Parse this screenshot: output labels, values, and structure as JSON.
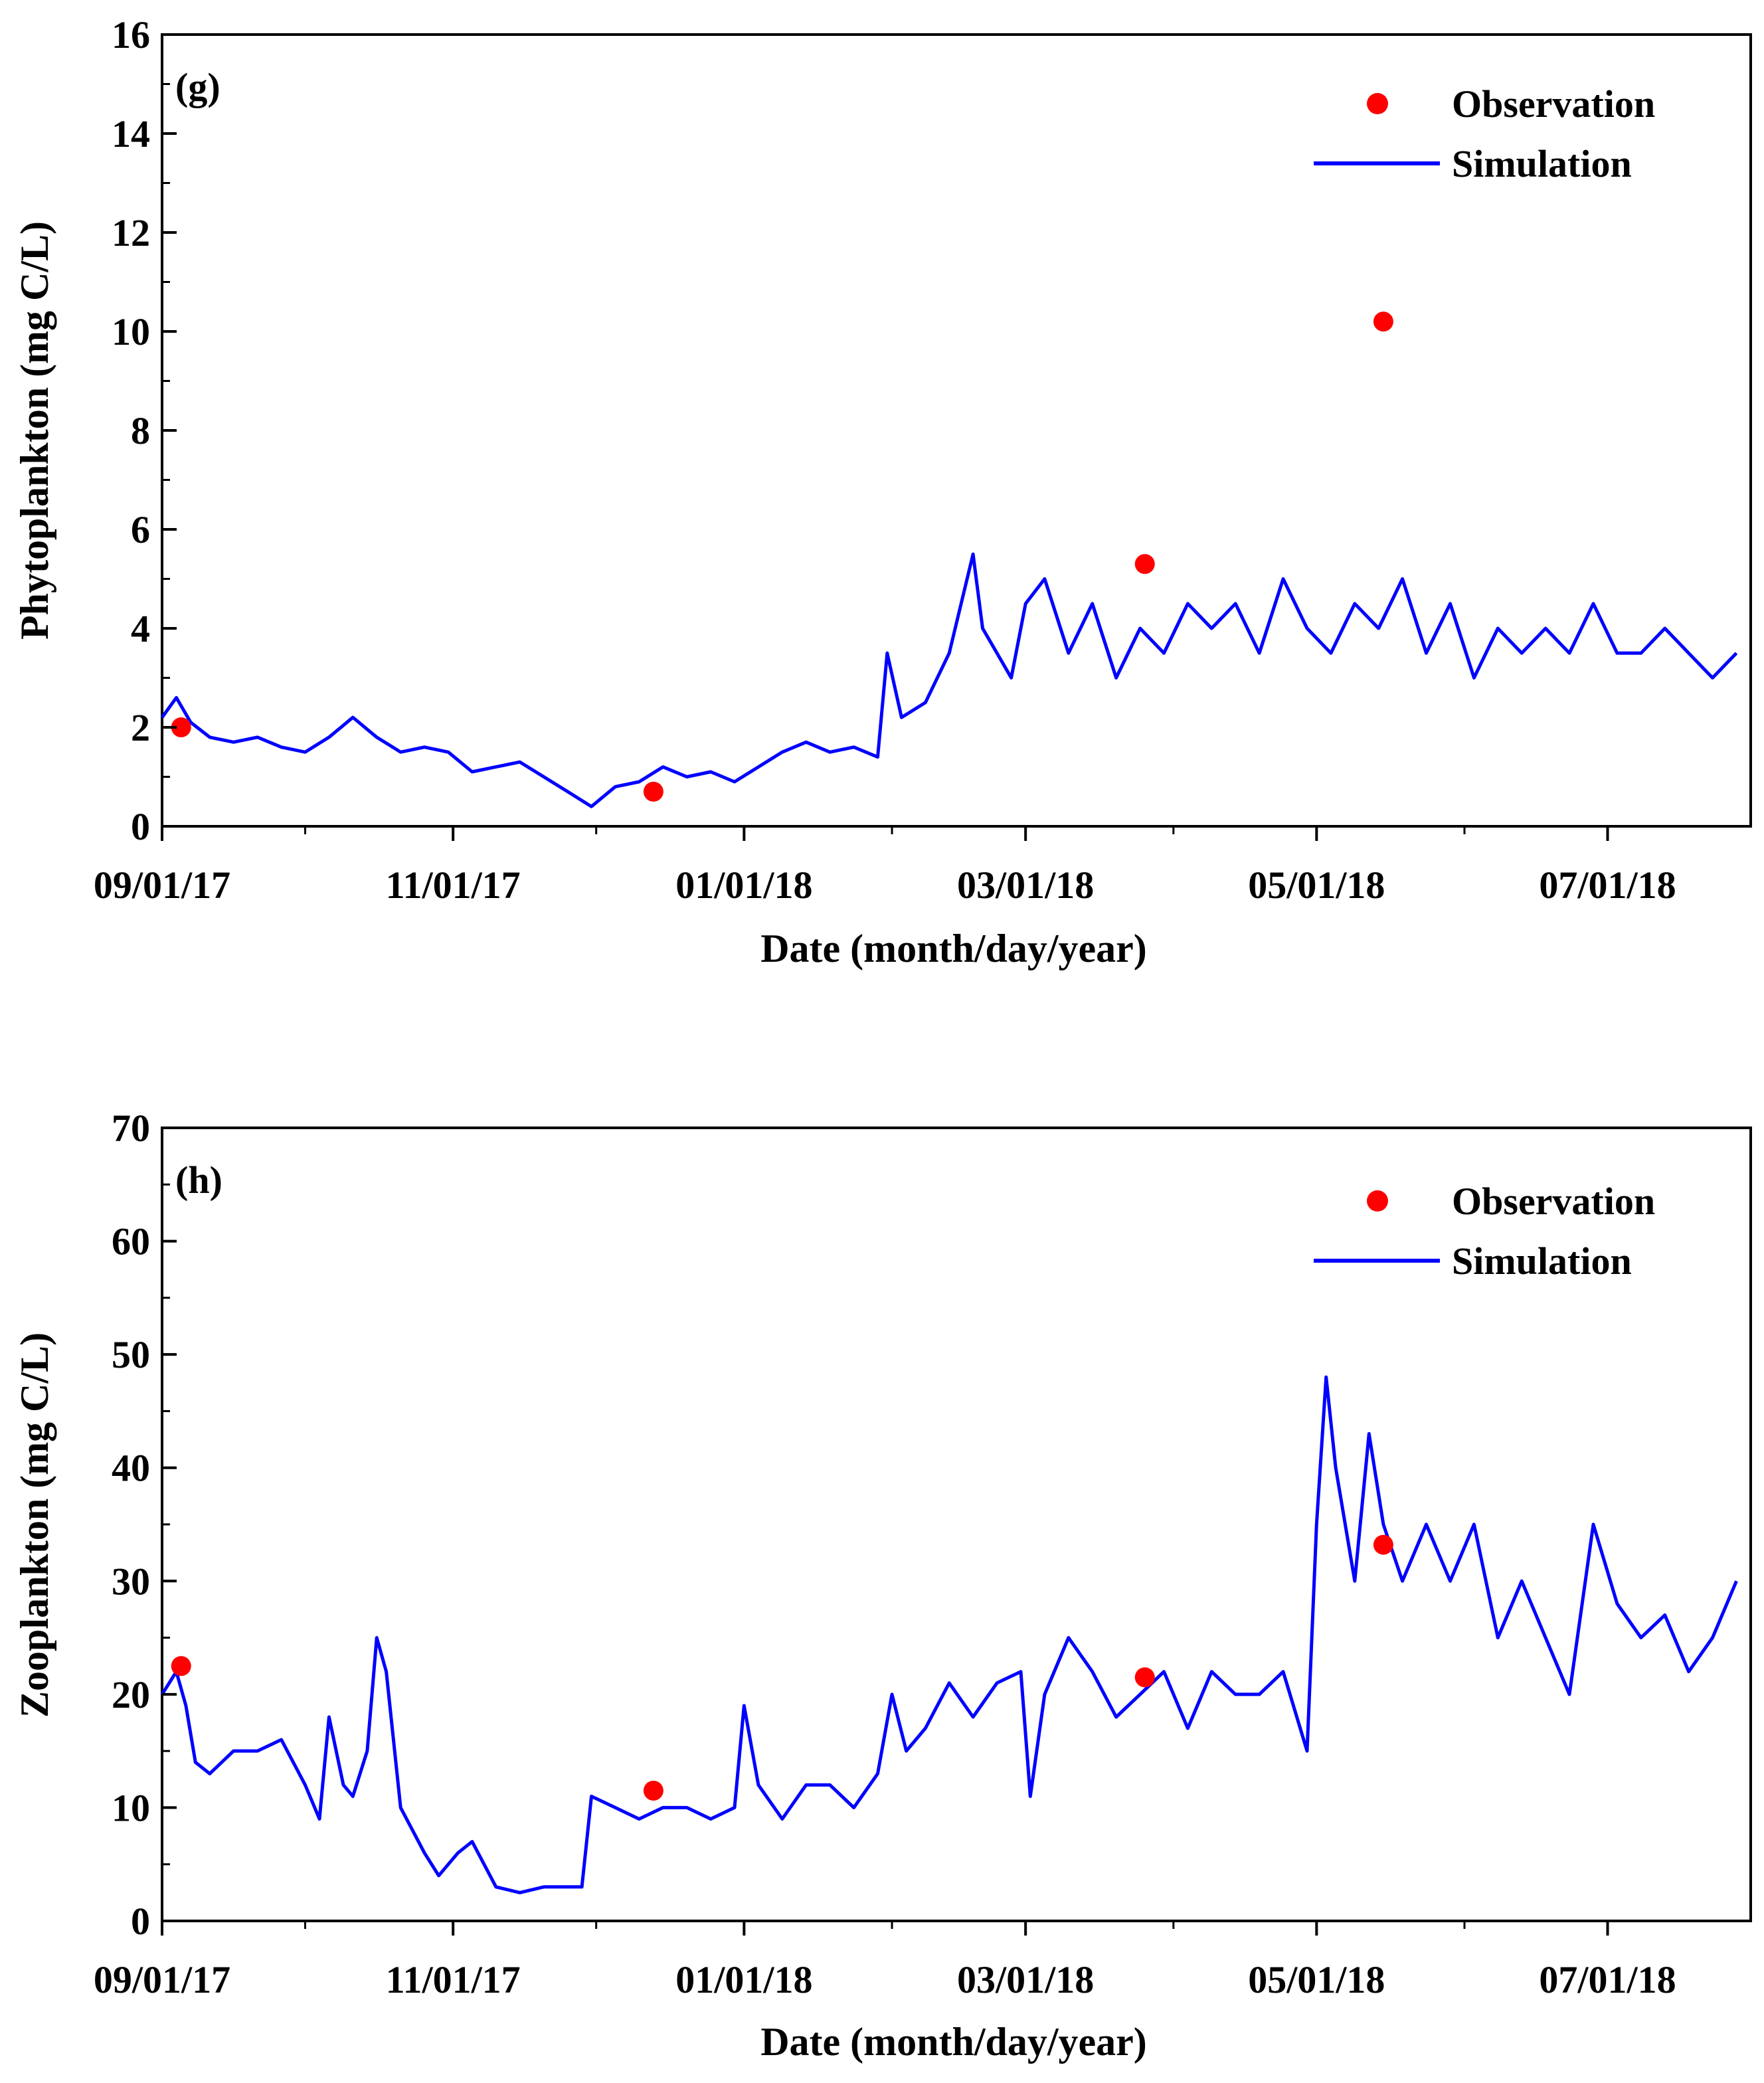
{
  "x_axis_label": "Date (month/day/year)",
  "legend": {
    "observation": "Observation",
    "simulation": "Simulation"
  },
  "colors": {
    "observation": "#ff0000",
    "simulation": "#0000ff",
    "axis": "#000000"
  },
  "chart_data": [
    {
      "id": "g",
      "panel_label": "(g)",
      "type": "line",
      "title": "",
      "xlabel": "Date (month/day/year)",
      "ylabel": "Phytoplankton (mg C/L)",
      "ylim": [
        0,
        16
      ],
      "yticks": [
        0,
        2,
        4,
        6,
        8,
        10,
        12,
        14,
        16
      ],
      "y_minor_step": 1,
      "xlim": [
        "2017-09-01",
        "2018-07-31"
      ],
      "xlim_days": [
        0,
        333
      ],
      "x_tick_labels": [
        "09/01/17",
        "11/01/17",
        "01/01/18",
        "03/01/18",
        "05/01/18",
        "07/01/18"
      ],
      "x_tick_days": [
        0,
        61,
        122,
        181,
        242,
        303
      ],
      "x_minor_days": [
        30,
        91,
        153,
        212,
        273
      ],
      "legend_position": "top-right",
      "series": [
        {
          "name": "Observation",
          "kind": "scatter",
          "x": [
            4,
            103,
            206,
            256
          ],
          "y": [
            2.0,
            0.7,
            5.3,
            10.2
          ]
        },
        {
          "name": "Simulation",
          "kind": "line",
          "x": [
            0,
            3,
            6,
            10,
            15,
            20,
            25,
            30,
            35,
            40,
            45,
            50,
            55,
            60,
            65,
            70,
            75,
            80,
            85,
            90,
            95,
            100,
            105,
            110,
            115,
            120,
            125,
            130,
            135,
            140,
            145,
            150,
            152,
            155,
            160,
            165,
            170,
            172,
            175,
            178,
            181,
            185,
            190,
            195,
            200,
            205,
            210,
            215,
            220,
            225,
            230,
            235,
            240,
            245,
            250,
            255,
            260,
            265,
            270,
            275,
            280,
            285,
            290,
            295,
            300,
            305,
            310,
            315,
            320,
            325,
            330
          ],
          "y": [
            2.2,
            2.6,
            2.1,
            1.8,
            1.7,
            1.8,
            1.6,
            1.5,
            1.8,
            2.2,
            1.8,
            1.5,
            1.6,
            1.5,
            1.1,
            1.2,
            1.3,
            1.0,
            0.7,
            0.4,
            0.8,
            0.9,
            1.2,
            1.0,
            1.1,
            0.9,
            1.2,
            1.5,
            1.7,
            1.5,
            1.6,
            1.4,
            3.5,
            2.2,
            2.5,
            3.5,
            5.5,
            4.0,
            3.5,
            3.0,
            4.5,
            5.0,
            3.5,
            4.5,
            3.0,
            4.0,
            3.5,
            4.5,
            4.0,
            4.5,
            3.5,
            5.0,
            4.0,
            3.5,
            4.5,
            4.0,
            5.0,
            3.5,
            4.5,
            3.0,
            4.0,
            3.5,
            4.0,
            3.5,
            4.5,
            3.5,
            3.5,
            4.0,
            3.5,
            3.0,
            3.5
          ]
        }
      ]
    },
    {
      "id": "h",
      "panel_label": "(h)",
      "type": "line",
      "title": "",
      "xlabel": "Date (month/day/year)",
      "ylabel": "Zooplankton (mg C/L)",
      "ylim": [
        0,
        70
      ],
      "yticks": [
        0,
        10,
        20,
        30,
        40,
        50,
        60,
        70
      ],
      "y_minor_step": 5,
      "xlim": [
        "2017-09-01",
        "2018-07-31"
      ],
      "xlim_days": [
        0,
        333
      ],
      "x_tick_labels": [
        "09/01/17",
        "11/01/17",
        "01/01/18",
        "03/01/18",
        "05/01/18",
        "07/01/18"
      ],
      "x_tick_days": [
        0,
        61,
        122,
        181,
        242,
        303
      ],
      "x_minor_days": [
        30,
        91,
        153,
        212,
        273
      ],
      "legend_position": "top-right",
      "series": [
        {
          "name": "Observation",
          "kind": "scatter",
          "x": [
            4,
            103,
            206,
            256
          ],
          "y": [
            22.5,
            11.5,
            21.5,
            33.2
          ]
        },
        {
          "name": "Simulation",
          "kind": "line",
          "x": [
            0,
            3,
            5,
            7,
            10,
            15,
            20,
            25,
            30,
            33,
            35,
            38,
            40,
            43,
            45,
            47,
            50,
            55,
            58,
            60,
            62,
            65,
            70,
            75,
            80,
            85,
            88,
            90,
            95,
            100,
            105,
            110,
            115,
            120,
            122,
            125,
            130,
            135,
            140,
            145,
            150,
            153,
            156,
            160,
            165,
            170,
            175,
            180,
            182,
            185,
            190,
            195,
            200,
            205,
            210,
            215,
            220,
            225,
            230,
            235,
            240,
            242,
            244,
            246,
            250,
            253,
            256,
            260,
            265,
            270,
            275,
            280,
            285,
            290,
            295,
            300,
            305,
            310,
            315,
            320,
            325,
            330
          ],
          "y": [
            20,
            22,
            19,
            14,
            13,
            15,
            15,
            16,
            12,
            9,
            18,
            12,
            11,
            15,
            25,
            22,
            10,
            6,
            4,
            5,
            6,
            7,
            3,
            2.5,
            3,
            3,
            3,
            11,
            10,
            9,
            10,
            10,
            9,
            10,
            19,
            12,
            9,
            12,
            12,
            10,
            13,
            20,
            15,
            17,
            21,
            18,
            21,
            22,
            11,
            20,
            25,
            22,
            18,
            20,
            22,
            17,
            22,
            20,
            20,
            22,
            15,
            35,
            48,
            40,
            30,
            43,
            35,
            30,
            35,
            30,
            35,
            25,
            30,
            25,
            20,
            35,
            28,
            25,
            27,
            22,
            25,
            30
          ]
        }
      ]
    }
  ]
}
